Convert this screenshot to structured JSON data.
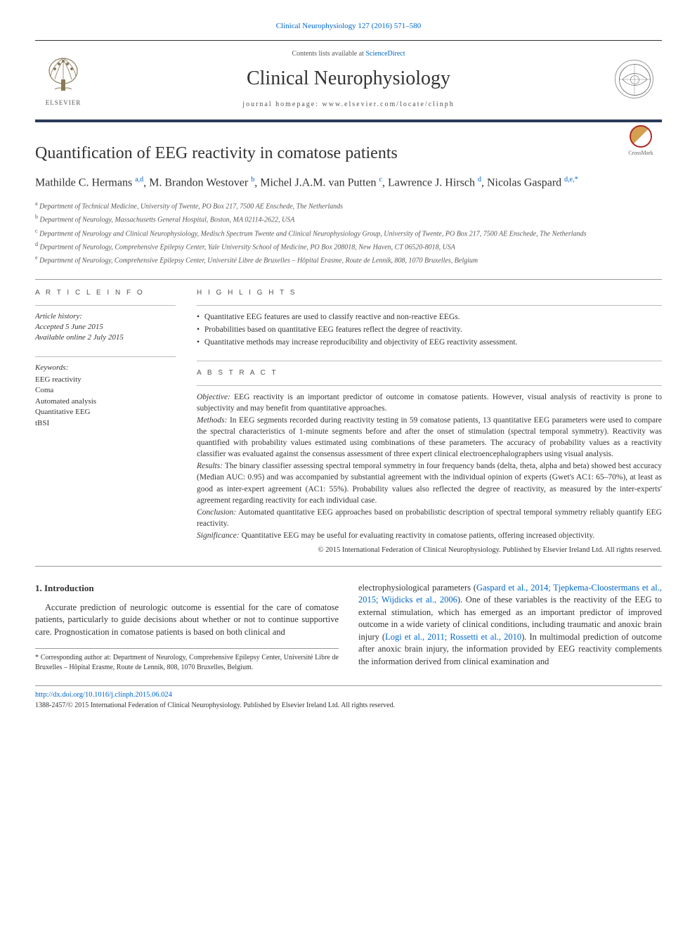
{
  "journal_ref": "Clinical Neurophysiology 127 (2016) 571–580",
  "header": {
    "contents_prefix": "Contents lists available at ",
    "contents_link": "ScienceDirect",
    "journal_title": "Clinical Neurophysiology",
    "homepage_prefix": "journal homepage: ",
    "homepage_url": "www.elsevier.com/locate/clinph",
    "publisher_label": "ELSEVIER"
  },
  "crossmark_label": "CrossMark",
  "title": "Quantification of EEG reactivity in comatose patients",
  "authors_html": "Mathilde C. Hermans <sup>a,d</sup>, M. Brandon Westover <sup>b</sup>, Michel J.A.M. van Putten <sup>c</sup>, Lawrence J. Hirsch <sup>d</sup>, Nicolas Gaspard <sup>d,e,*</sup>",
  "affiliations": [
    {
      "sup": "a",
      "text": "Department of Technical Medicine, University of Twente, PO Box 217, 7500 AE Enschede, The Netherlands"
    },
    {
      "sup": "b",
      "text": "Department of Neurology, Massachusetts General Hospital, Boston, MA 02114-2622, USA"
    },
    {
      "sup": "c",
      "text": "Department of Neurology and Clinical Neurophysiology, Medisch Spectrum Twente and Clinical Neurophysiology Group, University of Twente, PO Box 217, 7500 AE Enschede, The Netherlands"
    },
    {
      "sup": "d",
      "text": "Department of Neurology, Comprehensive Epilepsy Center, Yale University School of Medicine, PO Box 208018, New Haven, CT 06520-8018, USA"
    },
    {
      "sup": "e",
      "text": "Department of Neurology, Comprehensive Epilepsy Center, Université Libre de Bruxelles – Hôpital Erasme, Route de Lennik, 808, 1070 Bruxelles, Belgium"
    }
  ],
  "article_info_label": "A R T I C L E   I N F O",
  "history": {
    "label": "Article history:",
    "accepted": "Accepted 5 June 2015",
    "online": "Available online 2 July 2015"
  },
  "keywords": {
    "label": "Keywords:",
    "items": [
      "EEG reactivity",
      "Coma",
      "Automated analysis",
      "Quantitative EEG",
      "tBSI"
    ]
  },
  "highlights_label": "H I G H L I G H T S",
  "highlights": [
    "Quantitative EEG features are used to classify reactive and non-reactive EEGs.",
    "Probabilities based on quantitative EEG features reflect the degree of reactivity.",
    "Quantitative methods may increase reproducibility and objectivity of EEG reactivity assessment."
  ],
  "abstract_label": "A B S T R A C T",
  "abstract": {
    "objective": "EEG reactivity is an important predictor of outcome in comatose patients. However, visual analysis of reactivity is prone to subjectivity and may benefit from quantitative approaches.",
    "methods": "In EEG segments recorded during reactivity testing in 59 comatose patients, 13 quantitative EEG parameters were used to compare the spectral characteristics of 1-minute segments before and after the onset of stimulation (spectral temporal symmetry). Reactivity was quantified with probability values estimated using combinations of these parameters. The accuracy of probability values as a reactivity classifier was evaluated against the consensus assessment of three expert clinical electroencephalographers using visual analysis.",
    "results": "The binary classifier assessing spectral temporal symmetry in four frequency bands (delta, theta, alpha and beta) showed best accuracy (Median AUC: 0.95) and was accompanied by substantial agreement with the individual opinion of experts (Gwet's AC1: 65–70%), at least as good as inter-expert agreement (AC1: 55%). Probability values also reflected the degree of reactivity, as measured by the inter-experts' agreement regarding reactivity for each individual case.",
    "conclusion": "Automated quantitative EEG approaches based on probabilistic description of spectral temporal symmetry reliably quantify EEG reactivity.",
    "significance": "Quantitative EEG may be useful for evaluating reactivity in comatose patients, offering increased objectivity."
  },
  "copyright": "© 2015 International Federation of Clinical Neurophysiology. Published by Elsevier Ireland Ltd. All rights reserved.",
  "intro_heading": "1. Introduction",
  "intro_col1": "Accurate prediction of neurologic outcome is essential for the care of comatose patients, particularly to guide decisions about whether or not to continue supportive care. Prognostication in comatose patients is based on both clinical and",
  "intro_col2_pre": "electrophysiological parameters (",
  "intro_cite1": "Gaspard et al., 2014; Tjepkema-Cloostermans et al., 2015; Wijdicks et al., 2006",
  "intro_col2_mid": "). One of these variables is the reactivity of the EEG to external stimulation, which has emerged as an important predictor of improved outcome in a wide variety of clinical conditions, including traumatic and anoxic brain injury (",
  "intro_cite2": "Logi et al., 2011; Rossetti et al., 2010",
  "intro_col2_post": "). In multimodal prediction of outcome after anoxic brain injury, the information provided by EEG reactivity complements the information derived from clinical examination and",
  "corresponding": "* Corresponding author at: Department of Neurology, Comprehensive Epilepsy Center, Université Libre de Bruxelles – Hôpital Erasme, Route de Lennik, 808, 1070 Bruxelles, Belgium.",
  "doi": "http://dx.doi.org/10.1016/j.clinph.2015.06.024",
  "issn": "1388-2457/© 2015 International Federation of Clinical Neurophysiology. Published by Elsevier Ireland Ltd. All rights reserved.",
  "colors": {
    "link": "#0066cc",
    "rule": "#2a3a5a",
    "text": "#333333"
  }
}
